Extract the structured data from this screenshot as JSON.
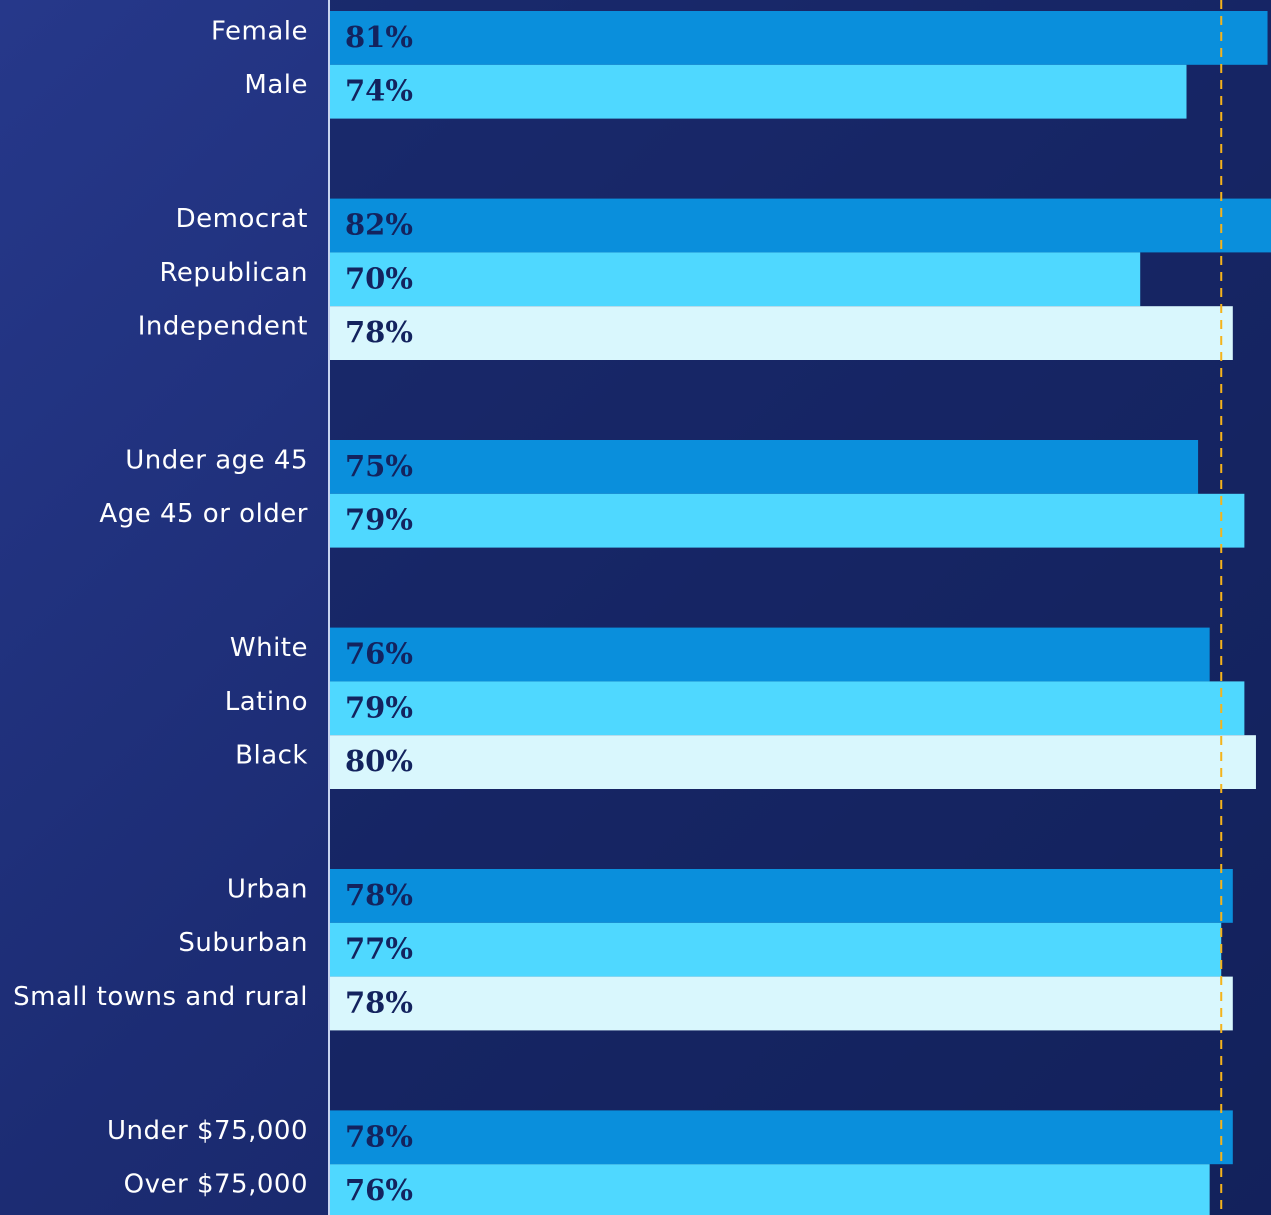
{
  "chart_data": {
    "type": "bar",
    "orientation": "horizontal",
    "xlim": [
      0,
      81.3
    ],
    "reference_line": 77,
    "reference_color": "#f5b31b",
    "colors": [
      "#0a8fdc",
      "#4fd8ff",
      "#d9f7fd"
    ],
    "groups": [
      {
        "categories": [
          "Female",
          "Male"
        ],
        "values": [
          81,
          74
        ],
        "value_labels": [
          "81%",
          "74%"
        ]
      },
      {
        "categories": [
          "Democrat",
          "Republican",
          "Independent"
        ],
        "values": [
          82,
          70,
          78
        ],
        "value_labels": [
          "82%",
          "70%",
          "78%"
        ]
      },
      {
        "categories": [
          "Under age 45",
          "Age 45 or older"
        ],
        "values": [
          75,
          79
        ],
        "value_labels": [
          "75%",
          "79%"
        ]
      },
      {
        "categories": [
          "White",
          "Latino",
          "Black"
        ],
        "values": [
          76,
          79,
          80
        ],
        "value_labels": [
          "76%",
          "79%",
          "80%"
        ]
      },
      {
        "categories": [
          "Urban",
          "Suburban",
          "Small towns and rural"
        ],
        "values": [
          78,
          77,
          78
        ],
        "value_labels": [
          "78%",
          "77%",
          "78%"
        ]
      },
      {
        "categories": [
          "Under $75,000",
          "Over $75,000"
        ],
        "values": [
          78,
          76
        ],
        "value_labels": [
          "78%",
          "76%"
        ]
      }
    ]
  }
}
